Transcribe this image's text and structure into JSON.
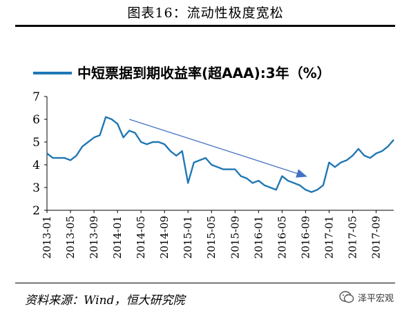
{
  "figure": {
    "title": "图表16：流动性极度宽松",
    "source": "资料来源：Wind，恒大研究院",
    "logo_text": "泽平宏观",
    "logo_icon": "wechat-icon"
  },
  "chart_data": {
    "type": "line",
    "title": "",
    "xlabel": "",
    "ylabel": "",
    "ylim": [
      2,
      7
    ],
    "yticks": [
      "2",
      "3",
      "4",
      "5",
      "6",
      "7"
    ],
    "xticks": [
      "2013-01",
      "2013-05",
      "2013-09",
      "2014-01",
      "2014-05",
      "2014-09",
      "2015-01",
      "2015-05",
      "2015-09",
      "2016-01",
      "2016-05",
      "2016-09",
      "2017-01",
      "2017-05",
      "2017-09"
    ],
    "grid": false,
    "legend_position": "top-left",
    "series": [
      {
        "name": "中短票据到期收益率(超AAA):3年（%）",
        "color": "#1f77b4",
        "x": [
          "2013-01",
          "2013-02",
          "2013-03",
          "2013-04",
          "2013-05",
          "2013-06",
          "2013-07",
          "2013-08",
          "2013-09",
          "2013-10",
          "2013-11",
          "2013-12",
          "2014-01",
          "2014-02",
          "2014-03",
          "2014-04",
          "2014-05",
          "2014-06",
          "2014-07",
          "2014-08",
          "2014-09",
          "2014-10",
          "2014-11",
          "2014-12",
          "2015-01",
          "2015-02",
          "2015-03",
          "2015-04",
          "2015-05",
          "2015-06",
          "2015-07",
          "2015-08",
          "2015-09",
          "2015-10",
          "2015-11",
          "2015-12",
          "2016-01",
          "2016-02",
          "2016-03",
          "2016-04",
          "2016-05",
          "2016-06",
          "2016-07",
          "2016-08",
          "2016-09",
          "2016-10",
          "2016-11",
          "2016-12",
          "2017-01",
          "2017-02",
          "2017-03",
          "2017-04",
          "2017-05",
          "2017-06",
          "2017-07",
          "2017-08",
          "2017-09",
          "2017-10",
          "2017-11",
          "2017-12"
        ],
        "values": [
          4.5,
          4.3,
          4.3,
          4.3,
          4.2,
          4.4,
          4.8,
          5.0,
          5.2,
          5.3,
          6.1,
          6.0,
          5.8,
          5.2,
          5.5,
          5.4,
          5.0,
          4.9,
          5.0,
          5.0,
          4.9,
          4.6,
          4.4,
          4.6,
          3.2,
          4.1,
          4.2,
          4.3,
          4.0,
          3.9,
          3.8,
          3.8,
          3.8,
          3.5,
          3.4,
          3.2,
          3.3,
          3.1,
          3.0,
          2.9,
          3.5,
          3.3,
          3.2,
          3.1,
          2.9,
          2.8,
          2.9,
          3.1,
          4.1,
          3.9,
          4.1,
          4.2,
          4.4,
          4.7,
          4.4,
          4.3,
          4.5,
          4.6,
          4.8,
          5.1
        ]
      }
    ],
    "annotations": [
      {
        "type": "arrow",
        "from": [
          "2014-03",
          6.0
        ],
        "to": [
          "2016-09",
          3.5
        ]
      }
    ]
  }
}
